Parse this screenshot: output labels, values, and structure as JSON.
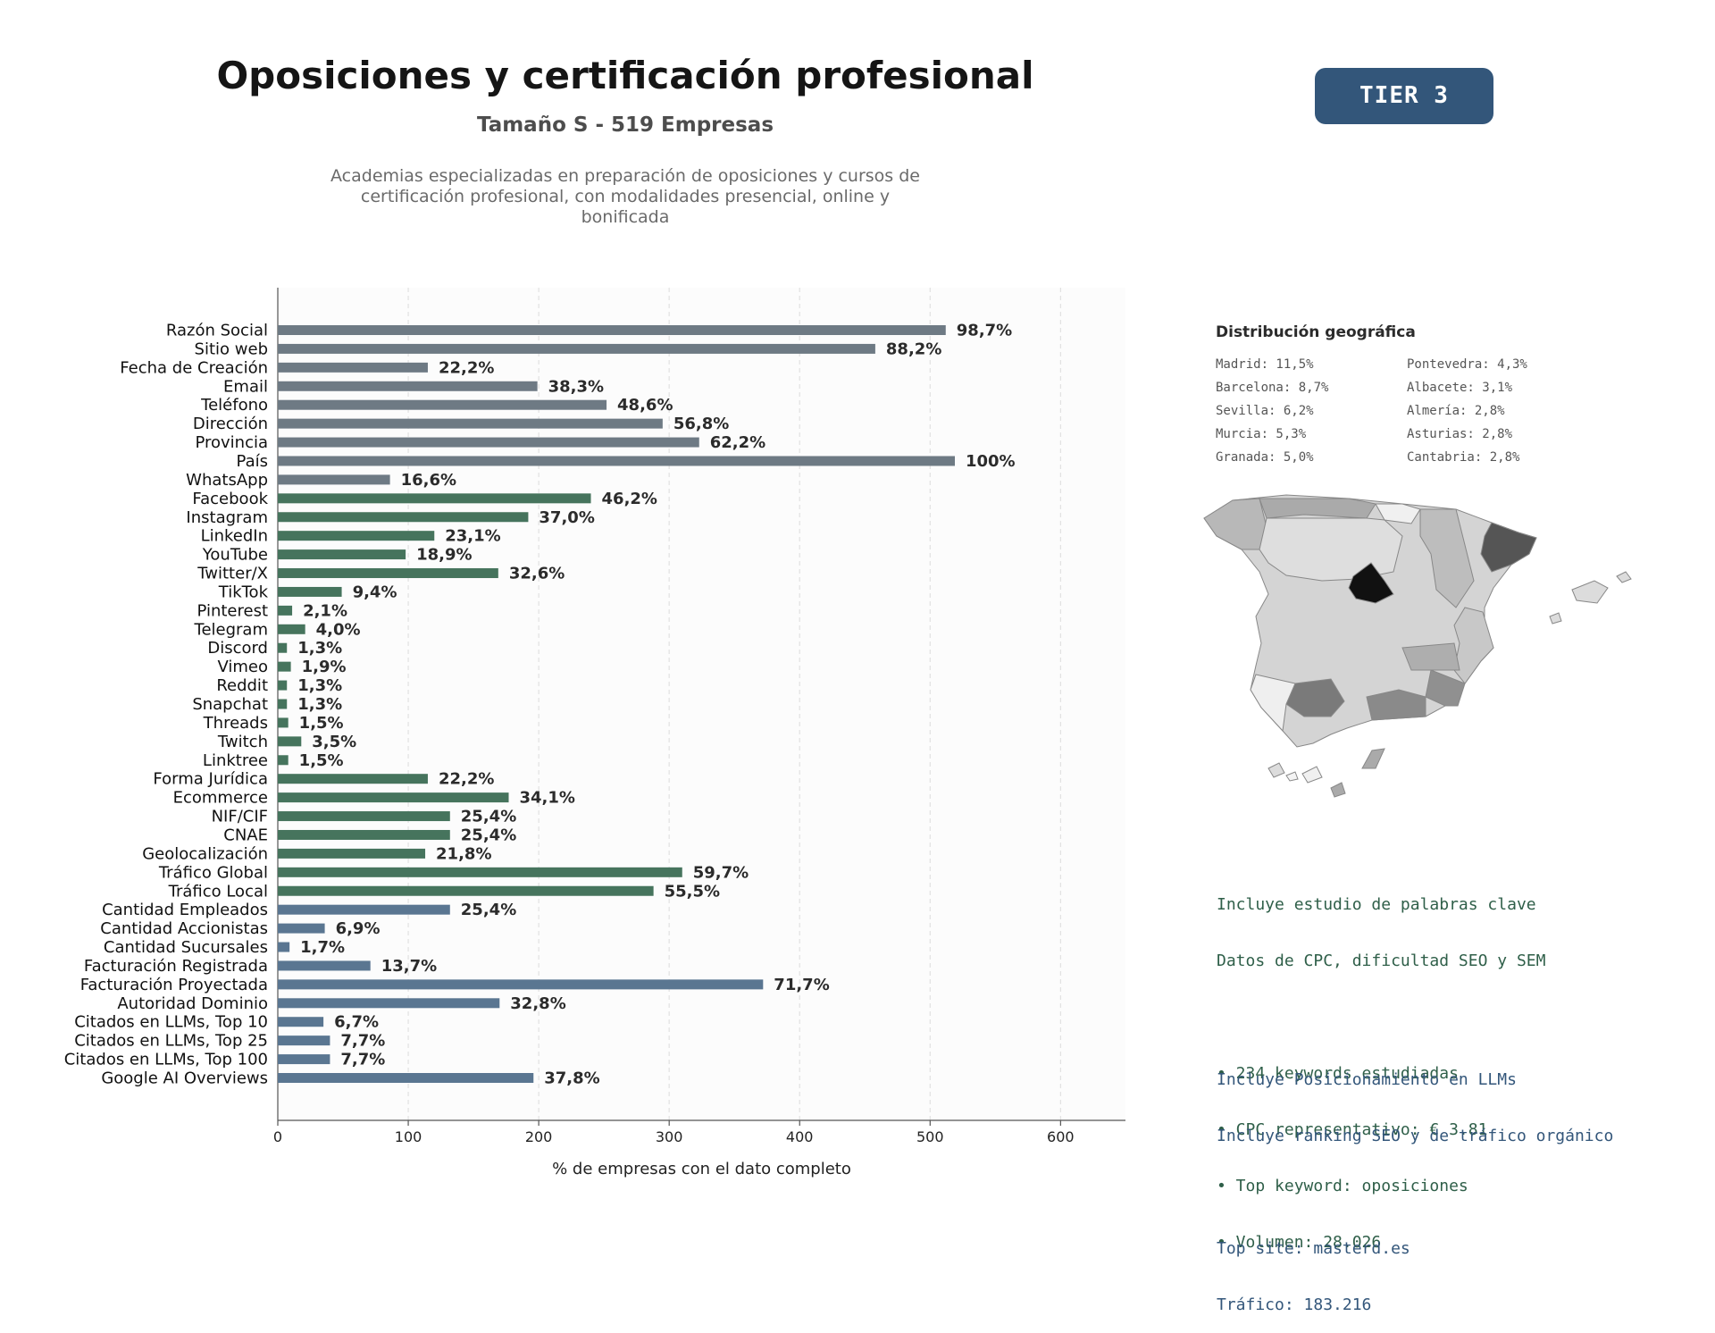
{
  "header": {
    "title": "Oposiciones y certificación profesional",
    "subtitle": "Tamaño S - 519 Empresas",
    "description_lines": [
      "Academias especializadas en preparación de oposiciones y cursos de",
      "certificación profesional, con modalidades presencial, online y",
      "bonificada"
    ],
    "tier_badge": "TIER 3"
  },
  "colors": {
    "gray_bar": "#6e7a84",
    "green_bar": "#46745d",
    "blue_bar": "#5a7691",
    "badge": "#33567a"
  },
  "chart_data": {
    "type": "bar",
    "orientation": "horizontal",
    "xlabel": "% de empresas con el dato completo",
    "xlim": [
      0,
      650
    ],
    "xticks": [
      0,
      100,
      200,
      300,
      400,
      500,
      600
    ],
    "grid": "vertical dashed",
    "categories": [
      "Razón Social",
      "Sitio web",
      "Fecha de Creación",
      "Email",
      "Teléfono",
      "Dirección",
      "Provincia",
      "País",
      "WhatsApp",
      "Facebook",
      "Instagram",
      "LinkedIn",
      "YouTube",
      "Twitter/X",
      "TikTok",
      "Pinterest",
      "Telegram",
      "Discord",
      "Vimeo",
      "Reddit",
      "Snapchat",
      "Threads",
      "Twitch",
      "Linktree",
      "Forma Jurídica",
      "Ecommerce",
      "NIF/CIF",
      "CNAE",
      "Geolocalización",
      "Tráfico Global",
      "Tráfico Local",
      "Cantidad Empleados",
      "Cantidad Accionistas",
      "Cantidad Sucursales",
      "Facturación Registrada",
      "Facturación Proyectada",
      "Autoridad Dominio",
      "Citados en LLMs, Top 10",
      "Citados en LLMs, Top 25",
      "Citados en LLMs, Top 100",
      "Google AI Overviews"
    ],
    "values": [
      512,
      458,
      115,
      199,
      252,
      295,
      323,
      519,
      86,
      240,
      192,
      120,
      98,
      169,
      49,
      11,
      21,
      7,
      10,
      7,
      7,
      8,
      18,
      8,
      115,
      177,
      132,
      132,
      113,
      310,
      288,
      132,
      36,
      9,
      71,
      372,
      170,
      35,
      40,
      40,
      196
    ],
    "labels": [
      "98,7%",
      "88,2%",
      "22,2%",
      "38,3%",
      "48,6%",
      "56,8%",
      "62,2%",
      "100%",
      "16,6%",
      "46,2%",
      "37,0%",
      "23,1%",
      "18,9%",
      "32,6%",
      "9,4%",
      "2,1%",
      "4,0%",
      "1,3%",
      "1,9%",
      "1,3%",
      "1,3%",
      "1,5%",
      "3,5%",
      "1,5%",
      "22,2%",
      "34,1%",
      "25,4%",
      "25,4%",
      "21,8%",
      "59,7%",
      "55,5%",
      "25,4%",
      "6,9%",
      "1,7%",
      "13,7%",
      "71,7%",
      "32,8%",
      "6,7%",
      "7,7%",
      "7,7%",
      "37,8%"
    ],
    "color_groups": [
      "gray",
      "gray",
      "gray",
      "gray",
      "gray",
      "gray",
      "gray",
      "gray",
      "gray",
      "green",
      "green",
      "green",
      "green",
      "green",
      "green",
      "green",
      "green",
      "green",
      "green",
      "green",
      "green",
      "green",
      "green",
      "green",
      "green",
      "green",
      "green",
      "green",
      "green",
      "green",
      "green",
      "blue",
      "blue",
      "blue",
      "blue",
      "blue",
      "blue",
      "blue",
      "blue",
      "blue",
      "blue"
    ]
  },
  "geo": {
    "title": "Distribución geográfica",
    "col1": [
      "Madrid: 11,5%",
      "Barcelona: 8,7%",
      "Sevilla: 6,2%",
      "Murcia: 5,3%",
      "Granada: 5,0%"
    ],
    "col2": [
      "Pontevedra: 4,3%",
      "Albacete: 3,1%",
      "Almería: 2,8%",
      "Asturias: 2,8%",
      "Cantabria: 2,8%"
    ]
  },
  "keywords": {
    "lines": [
      "Incluye estudio de palabras clave",
      "Datos de CPC, dificultad SEO y SEM",
      "",
      "• 234 keywords estudiadas",
      "• CPC representativo: € 3.81",
      "• Top keyword: oposiciones",
      "• Volumen: 28.026"
    ]
  },
  "llm": {
    "lines": [
      "Incluye Posicionamiento en LLMs",
      "Incluye ranking SEO y de tráfico orgánico",
      "",
      "Top site: masterd.es",
      "Tráfico: 183.216"
    ]
  }
}
